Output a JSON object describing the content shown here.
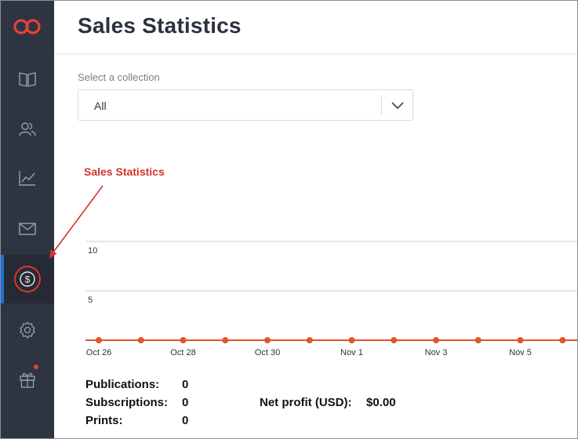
{
  "header": {
    "title": "Sales Statistics"
  },
  "sidebar": {
    "items": [
      {
        "icon": "book-icon"
      },
      {
        "icon": "users-icon"
      },
      {
        "icon": "trend-chart-icon"
      },
      {
        "icon": "mail-icon"
      },
      {
        "icon": "dollar-coin-icon",
        "active": true
      },
      {
        "icon": "gear-icon"
      },
      {
        "icon": "gift-icon",
        "has_notification": true
      }
    ],
    "logo_color": "#e8413b",
    "active_accent": "#1f6fd1"
  },
  "filter": {
    "label": "Select a collection",
    "selected": "All"
  },
  "annotation": {
    "label": "Sales Statistics",
    "color": "#d0342c"
  },
  "chart_data": {
    "type": "line",
    "x": [
      "Oct 26",
      "Oct 27",
      "Oct 28",
      "Oct 29",
      "Oct 30",
      "Oct 31",
      "Nov 1",
      "Nov 2",
      "Nov 3",
      "Nov 4",
      "Nov 5",
      "Nov 6"
    ],
    "x_tick_labels": [
      "Oct 26",
      "Oct 28",
      "Oct 30",
      "Nov 1",
      "Nov 3",
      "Nov 5"
    ],
    "series": [
      {
        "values": [
          0,
          0,
          0,
          0,
          0,
          0,
          0,
          0,
          0,
          0,
          0,
          0
        ],
        "color": "#e0562a"
      }
    ],
    "y_ticks": [
      "5",
      "10"
    ],
    "ylim": [
      0,
      10
    ],
    "grid": true
  },
  "stats": {
    "publications_label": "Publications:",
    "publications_value": "0",
    "subscriptions_label": "Subscriptions:",
    "subscriptions_value": "0",
    "prints_label": "Prints:",
    "prints_value": "0",
    "net_profit_label": "Net profit (USD):",
    "net_profit_value": "$0.00"
  }
}
